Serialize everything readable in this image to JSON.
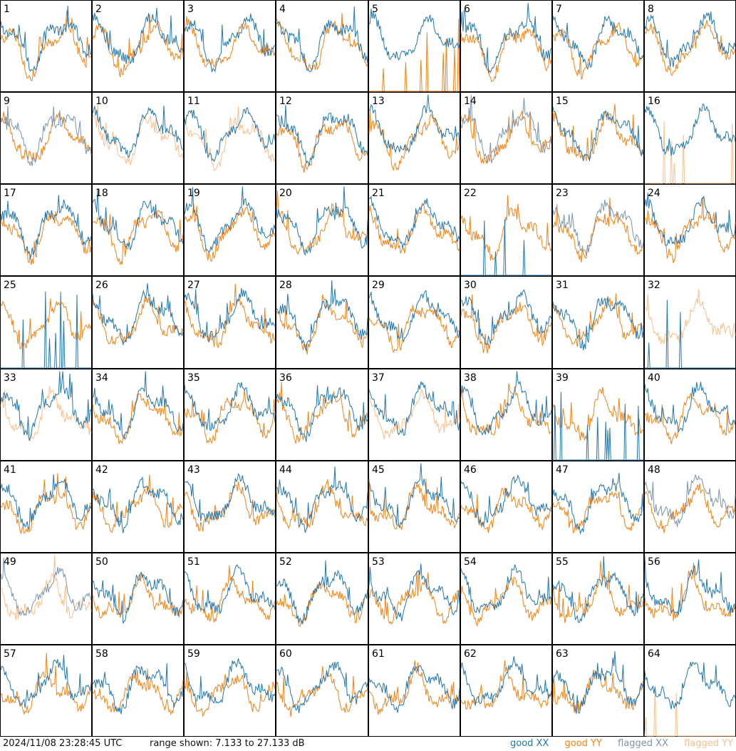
{
  "chart_data": {
    "type": "line",
    "panel_count": 64,
    "grid": "8x8",
    "panels": [
      "1",
      "2",
      "3",
      "4",
      "5",
      "6",
      "7",
      "8",
      "9",
      "10",
      "11",
      "12",
      "13",
      "14",
      "15",
      "16",
      "17",
      "18",
      "19",
      "20",
      "21",
      "22",
      "23",
      "24",
      "25",
      "26",
      "27",
      "28",
      "29",
      "30",
      "31",
      "32",
      "33",
      "34",
      "35",
      "36",
      "37",
      "38",
      "39",
      "40",
      "41",
      "42",
      "43",
      "44",
      "45",
      "46",
      "47",
      "48",
      "49",
      "50",
      "51",
      "52",
      "53",
      "54",
      "55",
      "56",
      "57",
      "58",
      "59",
      "60",
      "61",
      "62",
      "63",
      "64"
    ],
    "flagged_xx": [
      "9",
      "14",
      "23",
      "48",
      "49"
    ],
    "flagged_yy": [
      "10",
      "11",
      "16",
      "32",
      "33",
      "37",
      "49",
      "64"
    ],
    "dead_xx": [
      "22",
      "25",
      "32",
      "39"
    ],
    "dead_yy": [
      "5",
      "16",
      "64"
    ],
    "series": [
      {
        "name": "good XX",
        "color": "#1f77b4"
      },
      {
        "name": "good YY",
        "color": "#ff7f0e"
      },
      {
        "name": "flagged XX",
        "color": "#7a95b0"
      },
      {
        "name": "flagged YY",
        "color": "#ffbe8a"
      }
    ],
    "ylim": [
      7.133,
      27.133
    ],
    "yunit": "dB"
  },
  "footer": {
    "timestamp": "2024/11/08 23:28:45 UTC",
    "range_text": "range shown: 7.133 to 27.133 dB",
    "legend": [
      "good XX",
      "good YY",
      "flagged XX",
      "flagged YY"
    ]
  }
}
